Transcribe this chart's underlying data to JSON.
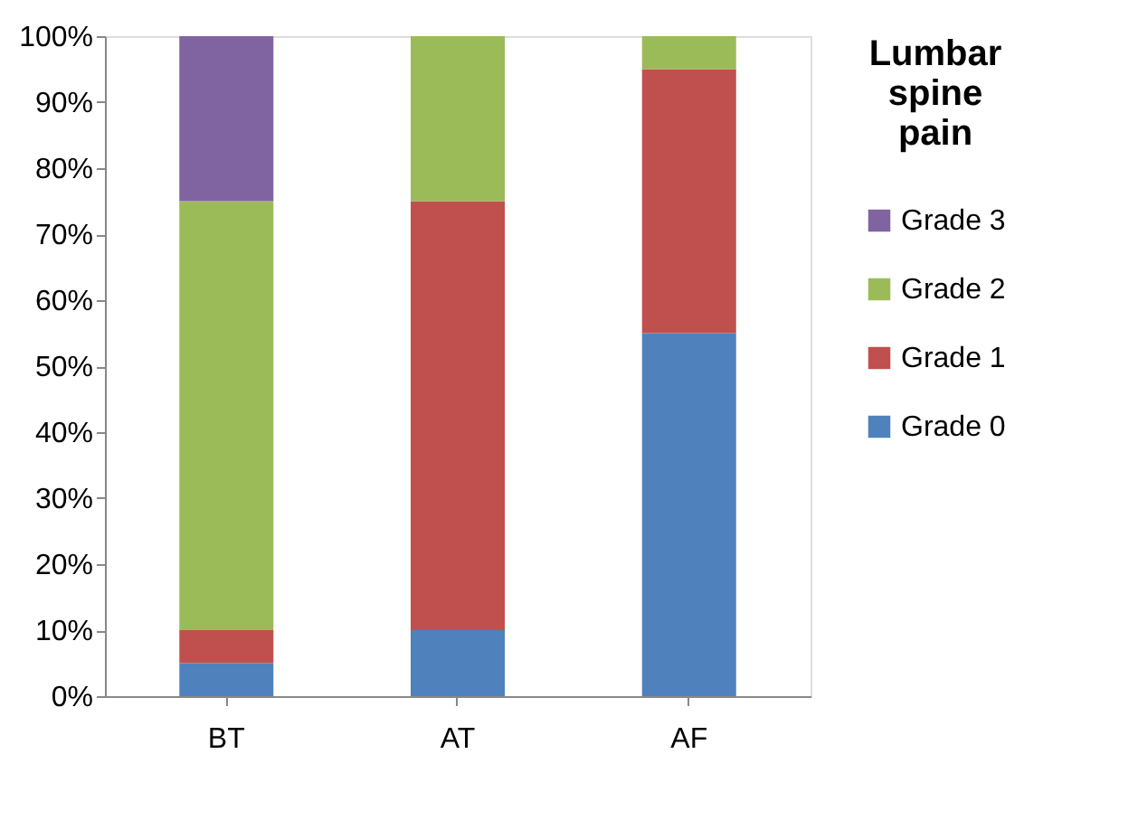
{
  "chart_data": {
    "type": "bar",
    "stacked": true,
    "legend_title": "Lumbar spine pain",
    "legend": "right",
    "grid": false,
    "categories": [
      "BT",
      "AT",
      "AF"
    ],
    "series": [
      {
        "name": "Grade 0",
        "color": "#4f81bd",
        "values": [
          5,
          10,
          55
        ]
      },
      {
        "name": "Grade 1",
        "color": "#c0504d",
        "values": [
          5,
          65,
          40
        ]
      },
      {
        "name": "Grade 2",
        "color": "#9bbb59",
        "values": [
          65,
          25,
          5
        ]
      },
      {
        "name": "Grade 3",
        "color": "#8064a2",
        "values": [
          25,
          0,
          0
        ]
      }
    ],
    "ylim": [
      0,
      100
    ],
    "yticks": [
      {
        "value": 0,
        "label": "0%"
      },
      {
        "value": 10,
        "label": "10%"
      },
      {
        "value": 20,
        "label": "20%"
      },
      {
        "value": 30,
        "label": "30%"
      },
      {
        "value": 40,
        "label": "40%"
      },
      {
        "value": 50,
        "label": "50%"
      },
      {
        "value": 60,
        "label": "60%"
      },
      {
        "value": 70,
        "label": "70%"
      },
      {
        "value": 80,
        "label": "80%"
      },
      {
        "value": 90,
        "label": "90%"
      },
      {
        "value": 100,
        "label": "100%"
      }
    ]
  }
}
